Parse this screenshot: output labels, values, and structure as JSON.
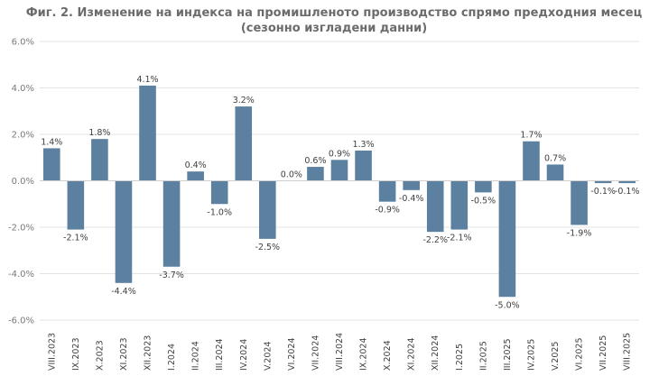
{
  "chart_data": {
    "type": "bar",
    "title": "Фиг. 2. Изменение на индекса на промишленото производство спрямо предходния месец",
    "subtitle": "(сезонно изгладени данни)",
    "xlabel": "",
    "ylabel": "",
    "ylim": [
      -6,
      6
    ],
    "yticks": [
      "6.0%",
      "4.0%",
      "2.0%",
      "0.0%",
      "-2.0%",
      "-4.0%",
      "-6.0%"
    ],
    "ytick_values": [
      6,
      4,
      2,
      0,
      -2,
      -4,
      -6
    ],
    "grid": true,
    "bar_color": "#5b80a0",
    "categories": [
      "VIII.2023",
      "IX.2023",
      "X.2023",
      "XI.2023",
      "XII.2023",
      "I.2024",
      "II.2024",
      "III.2024",
      "IV.2024",
      "V.2024",
      "VI.2024",
      "VII.2024",
      "VIII.2024",
      "IX.2024",
      "X.2024",
      "XI.2024",
      "XII.2024",
      "I.2025",
      "II.2025",
      "III.2025",
      "IV.2025",
      "V.2025",
      "VI.2025",
      "VII.2025",
      "VIII.2025"
    ],
    "values": [
      1.4,
      -2.1,
      1.8,
      -4.4,
      4.1,
      -3.7,
      0.4,
      -1.0,
      3.2,
      -2.5,
      0.0,
      0.6,
      0.9,
      1.3,
      -0.9,
      -0.4,
      -2.2,
      -2.1,
      -0.5,
      -5.0,
      1.7,
      0.7,
      -1.9,
      -0.1,
      -0.1
    ],
    "data_labels": [
      "1.4%",
      "-2.1%",
      "1.8%",
      "-4.4%",
      "4.1%",
      "-3.7%",
      "0.4%",
      "-1.0%",
      "3.2%",
      "-2.5%",
      "0.0%",
      "0.6%",
      "0.9%",
      "1.3%",
      "-0.9%",
      "-0.4%",
      "-2.2%",
      "-2.1%",
      "-0.5%",
      "-5.0%",
      "1.7%",
      "0.7%",
      "-1.9%",
      "-0.1%",
      "-0.1%"
    ]
  }
}
